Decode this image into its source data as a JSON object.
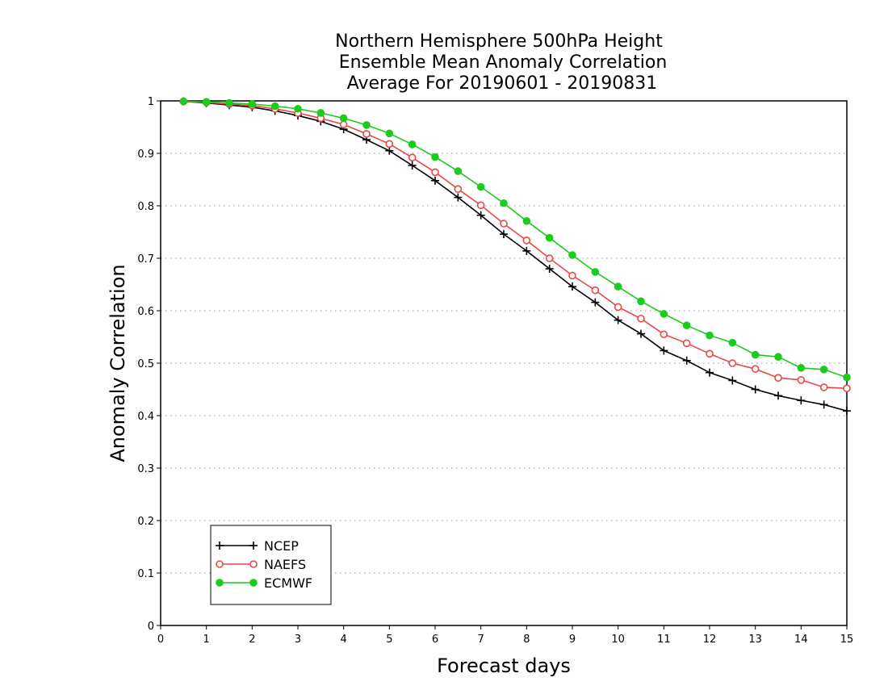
{
  "chart_data": {
    "type": "line",
    "title": [
      "Northern Hemisphere 500hPa Height",
      "Ensemble Mean Anomaly Correlation",
      "Average For 20190601 - 20190831"
    ],
    "xlabel": "Forecast days",
    "ylabel": "Anomaly Correlation",
    "xlim": [
      0,
      15
    ],
    "ylim": [
      0,
      1
    ],
    "xticks": [
      0,
      1,
      2,
      3,
      4,
      5,
      6,
      7,
      8,
      9,
      10,
      11,
      12,
      13,
      14,
      15
    ],
    "xtick_labels": [
      "0",
      "1",
      "2",
      "3",
      "4",
      "5",
      "6",
      "7",
      "8",
      "9",
      "10",
      "11",
      "12",
      "13",
      "14",
      "15"
    ],
    "yticks": [
      0,
      0.1,
      0.2,
      0.3,
      0.4,
      0.5,
      0.6,
      0.7,
      0.8,
      0.9,
      1
    ],
    "ytick_labels": [
      "0",
      "0.1",
      "0.2",
      "0.3",
      "0.4",
      "0.5",
      "0.6",
      "0.7",
      "0.8",
      "0.9",
      "1"
    ],
    "grid": "horizontal-dotted",
    "legend_position": "bottom-left",
    "x": [
      0.5,
      1,
      1.5,
      2,
      2.5,
      3,
      3.5,
      4,
      4.5,
      5,
      5.5,
      6,
      6.5,
      7,
      7.5,
      8,
      8.5,
      9,
      9.5,
      10,
      10.5,
      11,
      11.5,
      12,
      12.5,
      13,
      13.5,
      14,
      14.5,
      15
    ],
    "series": [
      {
        "name": "NCEP",
        "color": "#000000",
        "marker": "plus",
        "values": [
          0.999,
          0.996,
          0.992,
          0.988,
          0.981,
          0.972,
          0.961,
          0.946,
          0.926,
          0.905,
          0.877,
          0.848,
          0.816,
          0.782,
          0.746,
          0.714,
          0.68,
          0.646,
          0.616,
          0.582,
          0.556,
          0.524,
          0.505,
          0.482,
          0.467,
          0.45,
          0.438,
          0.429,
          0.421,
          0.409
        ]
      },
      {
        "name": "NAEFS",
        "color": "#e8474a",
        "marker": "open-circle",
        "values": [
          0.999,
          0.997,
          0.994,
          0.991,
          0.985,
          0.977,
          0.967,
          0.955,
          0.937,
          0.918,
          0.892,
          0.864,
          0.832,
          0.801,
          0.766,
          0.734,
          0.7,
          0.667,
          0.639,
          0.607,
          0.585,
          0.555,
          0.538,
          0.518,
          0.5,
          0.489,
          0.472,
          0.468,
          0.454,
          0.452
        ]
      },
      {
        "name": "ECMWF",
        "color": "#1ccc1c",
        "marker": "filled-circle",
        "values": [
          0.999,
          0.998,
          0.996,
          0.994,
          0.99,
          0.985,
          0.977,
          0.967,
          0.954,
          0.938,
          0.917,
          0.893,
          0.866,
          0.836,
          0.805,
          0.771,
          0.739,
          0.706,
          0.674,
          0.646,
          0.618,
          0.594,
          0.572,
          0.553,
          0.539,
          0.516,
          0.512,
          0.491,
          0.488,
          0.473
        ]
      }
    ]
  }
}
